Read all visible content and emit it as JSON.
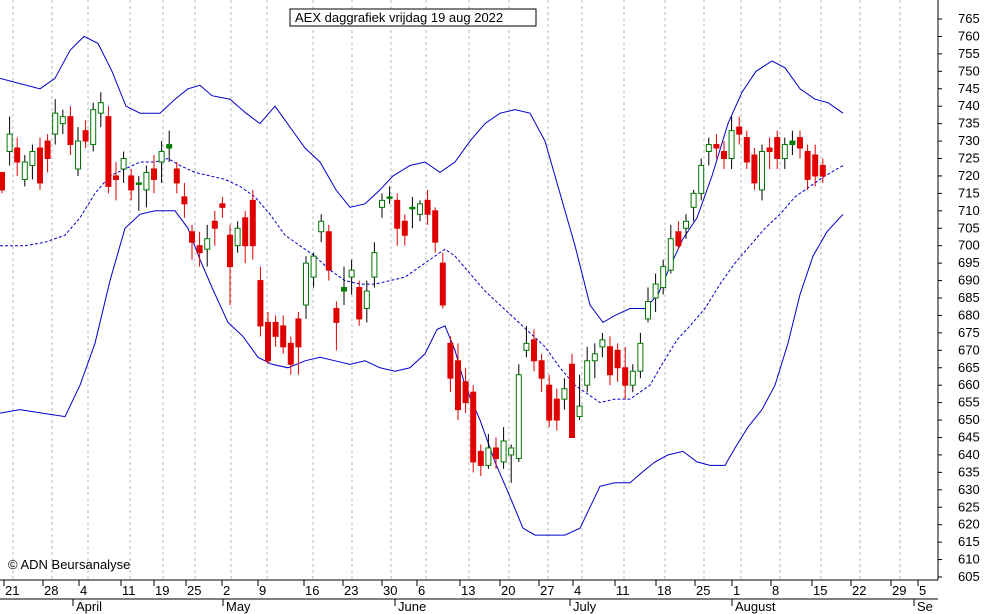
{
  "chart_data": {
    "type": "candlestick",
    "title": "AEX daggrafiek vrijdag 19 aug 2022",
    "copyright": "© ADN Beursanalyse",
    "y_ticks": [
      605,
      610,
      615,
      620,
      625,
      630,
      635,
      640,
      645,
      650,
      655,
      660,
      665,
      670,
      675,
      680,
      685,
      690,
      695,
      700,
      705,
      710,
      715,
      720,
      725,
      730,
      735,
      740,
      745,
      750,
      755,
      760,
      765
    ],
    "ylim": [
      602,
      769
    ],
    "x_tick_labels": [
      "21",
      "28",
      "4",
      "11",
      "19",
      "25",
      "2",
      "9",
      "16",
      "23",
      "30",
      "6",
      "13",
      "20",
      "27",
      "4",
      "11",
      "18",
      "25",
      "1",
      "8",
      "15",
      "22",
      "29",
      "5"
    ],
    "month_labels": [
      "April",
      "May",
      "June",
      "July",
      "August",
      "Se"
    ],
    "indicators": [
      "bollinger-upper",
      "bollinger-middle",
      "bollinger-lower"
    ],
    "colors": {
      "up_body": "#ffffff",
      "up_strong": "#008000",
      "down_body": "#e00000",
      "band": "#0000cc",
      "grid": "#b8b8b8"
    },
    "candles": [
      [
        721,
        716,
        719,
        715
      ],
      [
        727,
        732,
        737,
        723
      ],
      [
        728,
        724,
        731,
        720
      ],
      [
        719,
        724,
        726,
        717
      ],
      [
        723,
        727,
        729,
        719
      ],
      [
        728,
        718,
        731,
        716
      ],
      [
        730,
        725,
        732,
        721
      ],
      [
        732,
        738,
        742,
        729
      ],
      [
        735,
        737,
        739,
        732
      ],
      [
        737,
        729,
        740,
        726
      ],
      [
        722,
        730,
        734,
        720
      ],
      [
        733,
        730,
        736,
        728
      ],
      [
        729,
        739,
        741,
        727
      ],
      [
        738,
        741,
        744,
        734
      ],
      [
        737,
        717,
        740,
        715
      ],
      [
        720,
        719,
        724,
        713
      ],
      [
        722,
        725,
        727,
        718
      ],
      [
        720,
        716,
        722,
        713
      ],
      [
        718,
        718,
        720,
        710
      ],
      [
        716,
        721,
        723,
        711
      ],
      [
        722,
        719,
        726,
        715
      ],
      [
        724,
        727,
        730,
        718
      ],
      [
        728,
        729,
        733,
        724
      ],
      [
        722,
        718,
        724,
        715
      ],
      [
        714,
        712,
        718,
        708
      ],
      [
        704,
        701,
        706,
        696
      ],
      [
        700,
        698,
        704,
        694
      ],
      [
        699,
        702,
        706,
        694
      ],
      [
        707,
        705,
        710,
        700
      ],
      [
        712,
        711,
        714,
        708
      ],
      [
        703,
        694,
        706,
        683
      ],
      [
        700,
        705,
        707,
        698
      ],
      [
        708,
        700,
        710,
        695
      ],
      [
        713,
        700,
        716,
        696
      ],
      [
        690,
        677,
        694,
        674
      ],
      [
        678,
        667,
        681,
        666
      ],
      [
        678,
        674,
        680,
        671
      ],
      [
        677,
        671,
        680,
        669
      ],
      [
        672,
        666,
        674,
        663
      ],
      [
        679,
        671,
        681,
        663
      ],
      [
        683,
        695,
        697,
        679
      ],
      [
        691,
        697,
        698,
        688
      ],
      [
        704,
        707,
        709,
        701
      ],
      [
        704,
        693,
        706,
        690
      ],
      [
        682,
        678,
        684,
        670
      ],
      [
        687,
        688,
        694,
        683
      ],
      [
        691,
        693,
        696,
        686
      ],
      [
        688,
        679,
        690,
        677
      ],
      [
        682,
        687,
        690,
        678
      ],
      [
        691,
        698,
        701,
        688
      ],
      [
        711,
        713,
        715,
        708
      ],
      [
        714,
        714,
        717,
        712
      ],
      [
        713,
        705,
        715,
        700
      ],
      [
        707,
        703,
        709,
        700
      ],
      [
        711,
        711,
        714,
        705
      ],
      [
        709,
        712,
        713,
        707
      ],
      [
        713,
        709,
        716,
        706
      ],
      [
        710,
        701,
        711,
        698
      ],
      [
        695,
        683,
        698,
        682
      ],
      [
        672,
        662,
        674,
        658
      ],
      [
        667,
        653,
        672,
        650
      ],
      [
        661,
        655,
        665,
        652
      ],
      [
        658,
        638,
        660,
        635
      ],
      [
        641,
        637,
        643,
        634
      ],
      [
        637,
        642,
        646,
        636
      ],
      [
        642,
        639,
        645,
        636
      ],
      [
        638,
        644,
        648,
        636
      ],
      [
        640,
        642,
        643,
        632
      ],
      [
        639,
        663,
        666,
        638
      ],
      [
        670,
        672,
        677,
        668
      ],
      [
        673,
        667,
        676,
        664
      ],
      [
        667,
        662,
        669,
        658
      ],
      [
        660,
        650,
        663,
        648
      ],
      [
        656,
        650,
        659,
        647
      ],
      [
        656,
        659,
        662,
        653
      ],
      [
        666,
        645,
        669,
        645
      ],
      [
        651,
        654,
        663,
        650
      ],
      [
        660,
        667,
        671,
        658
      ],
      [
        667,
        669,
        672,
        662
      ],
      [
        671,
        673,
        675,
        668
      ],
      [
        671,
        663,
        674,
        660
      ],
      [
        670,
        665,
        672,
        661
      ],
      [
        665,
        660,
        671,
        656
      ],
      [
        660,
        664,
        666,
        658
      ],
      [
        664,
        672,
        675,
        662
      ],
      [
        679,
        684,
        688,
        678
      ],
      [
        685,
        689,
        692,
        681
      ],
      [
        688,
        694,
        696,
        686
      ],
      [
        693,
        702,
        706,
        692
      ],
      [
        704,
        700,
        707,
        699
      ],
      [
        705,
        707,
        709,
        702
      ],
      [
        711,
        715,
        716,
        707
      ],
      [
        715,
        723,
        725,
        713
      ],
      [
        727,
        729,
        731,
        723
      ],
      [
        729,
        728,
        732,
        725
      ],
      [
        727,
        725,
        730,
        722
      ],
      [
        725,
        733,
        737,
        722
      ],
      [
        734,
        732,
        737,
        729
      ],
      [
        731,
        724,
        733,
        722
      ],
      [
        726,
        718,
        728,
        716
      ],
      [
        716,
        727,
        729,
        713
      ],
      [
        728,
        727,
        731,
        722
      ],
      [
        731,
        725,
        733,
        722
      ],
      [
        725,
        729,
        731,
        722
      ],
      [
        729,
        730,
        733,
        726
      ],
      [
        731,
        728,
        733,
        725
      ],
      [
        727,
        719,
        729,
        716
      ],
      [
        726,
        720,
        729,
        717
      ],
      [
        723,
        720,
        725,
        718
      ]
    ],
    "bollinger_upper": [
      [
        0,
        748
      ],
      [
        40,
        745
      ],
      [
        55,
        748
      ],
      [
        70,
        756
      ],
      [
        84,
        760
      ],
      [
        98,
        758
      ],
      [
        112,
        750
      ],
      [
        126,
        740
      ],
      [
        140,
        738
      ],
      [
        160,
        738
      ],
      [
        175,
        742
      ],
      [
        188,
        745
      ],
      [
        200,
        746
      ],
      [
        212,
        743
      ],
      [
        230,
        742
      ],
      [
        246,
        738
      ],
      [
        260,
        735
      ],
      [
        275,
        740
      ],
      [
        290,
        734
      ],
      [
        305,
        728
      ],
      [
        320,
        724
      ],
      [
        336,
        716
      ],
      [
        350,
        711
      ],
      [
        365,
        712
      ],
      [
        380,
        716
      ],
      [
        393,
        720
      ],
      [
        410,
        723
      ],
      [
        425,
        724
      ],
      [
        440,
        721
      ],
      [
        455,
        724
      ],
      [
        470,
        730
      ],
      [
        485,
        735
      ],
      [
        500,
        738
      ],
      [
        515,
        739
      ],
      [
        530,
        738
      ],
      [
        545,
        730
      ],
      [
        560,
        715
      ],
      [
        575,
        700
      ],
      [
        590,
        683
      ],
      [
        603,
        678
      ],
      [
        615,
        680
      ],
      [
        630,
        682
      ],
      [
        645,
        682
      ],
      [
        658,
        686
      ],
      [
        670,
        694
      ],
      [
        683,
        702
      ],
      [
        697,
        708
      ],
      [
        712,
        720
      ],
      [
        728,
        735
      ],
      [
        742,
        744
      ],
      [
        756,
        750
      ],
      [
        772,
        753
      ],
      [
        785,
        751
      ],
      [
        800,
        745
      ],
      [
        815,
        742
      ],
      [
        828,
        741
      ],
      [
        843,
        738
      ]
    ],
    "bollinger_middle": [
      [
        0,
        700
      ],
      [
        25,
        700
      ],
      [
        45,
        701
      ],
      [
        65,
        703
      ],
      [
        80,
        708
      ],
      [
        95,
        715
      ],
      [
        110,
        720
      ],
      [
        125,
        722
      ],
      [
        140,
        724
      ],
      [
        155,
        724
      ],
      [
        168,
        725
      ],
      [
        180,
        723
      ],
      [
        195,
        721
      ],
      [
        210,
        720
      ],
      [
        225,
        719
      ],
      [
        240,
        717
      ],
      [
        255,
        714
      ],
      [
        270,
        709
      ],
      [
        285,
        703
      ],
      [
        300,
        700
      ],
      [
        315,
        697
      ],
      [
        330,
        693
      ],
      [
        345,
        690
      ],
      [
        360,
        689
      ],
      [
        375,
        689
      ],
      [
        390,
        690
      ],
      [
        405,
        691
      ],
      [
        420,
        694
      ],
      [
        435,
        697
      ],
      [
        445,
        699
      ],
      [
        455,
        697
      ],
      [
        470,
        692
      ],
      [
        485,
        687
      ],
      [
        500,
        683
      ],
      [
        515,
        679
      ],
      [
        530,
        675
      ],
      [
        545,
        671
      ],
      [
        560,
        665
      ],
      [
        575,
        660
      ],
      [
        590,
        657
      ],
      [
        600,
        655
      ],
      [
        615,
        656
      ],
      [
        630,
        656
      ],
      [
        640,
        658
      ],
      [
        650,
        660
      ],
      [
        662,
        666
      ],
      [
        677,
        673
      ],
      [
        690,
        677
      ],
      [
        705,
        682
      ],
      [
        720,
        689
      ],
      [
        735,
        695
      ],
      [
        750,
        700
      ],
      [
        765,
        705
      ],
      [
        780,
        709
      ],
      [
        795,
        714
      ],
      [
        810,
        717
      ],
      [
        825,
        720
      ],
      [
        843,
        723
      ]
    ],
    "bollinger_lower": [
      [
        0,
        652
      ],
      [
        20,
        653
      ],
      [
        42,
        652
      ],
      [
        65,
        651
      ],
      [
        80,
        660
      ],
      [
        95,
        672
      ],
      [
        110,
        690
      ],
      [
        125,
        705
      ],
      [
        140,
        709
      ],
      [
        155,
        710
      ],
      [
        175,
        710
      ],
      [
        188,
        705
      ],
      [
        200,
        696
      ],
      [
        212,
        688
      ],
      [
        228,
        678
      ],
      [
        243,
        674
      ],
      [
        258,
        668
      ],
      [
        272,
        666
      ],
      [
        288,
        665
      ],
      [
        305,
        667
      ],
      [
        320,
        668
      ],
      [
        335,
        667
      ],
      [
        350,
        666
      ],
      [
        365,
        667
      ],
      [
        380,
        665
      ],
      [
        395,
        664
      ],
      [
        410,
        665
      ],
      [
        425,
        669
      ],
      [
        437,
        676
      ],
      [
        445,
        677
      ],
      [
        455,
        670
      ],
      [
        465,
        660
      ],
      [
        480,
        650
      ],
      [
        495,
        638
      ],
      [
        510,
        628
      ],
      [
        523,
        619
      ],
      [
        535,
        617
      ],
      [
        550,
        617
      ],
      [
        565,
        617
      ],
      [
        580,
        619
      ],
      [
        590,
        625
      ],
      [
        600,
        631
      ],
      [
        615,
        632
      ],
      [
        630,
        632
      ],
      [
        642,
        635
      ],
      [
        655,
        638
      ],
      [
        668,
        640
      ],
      [
        683,
        641
      ],
      [
        697,
        638
      ],
      [
        710,
        637
      ],
      [
        725,
        637
      ],
      [
        735,
        642
      ],
      [
        748,
        648
      ],
      [
        762,
        653
      ],
      [
        775,
        660
      ],
      [
        788,
        672
      ],
      [
        800,
        686
      ],
      [
        813,
        697
      ],
      [
        827,
        704
      ],
      [
        843,
        709
      ]
    ]
  }
}
